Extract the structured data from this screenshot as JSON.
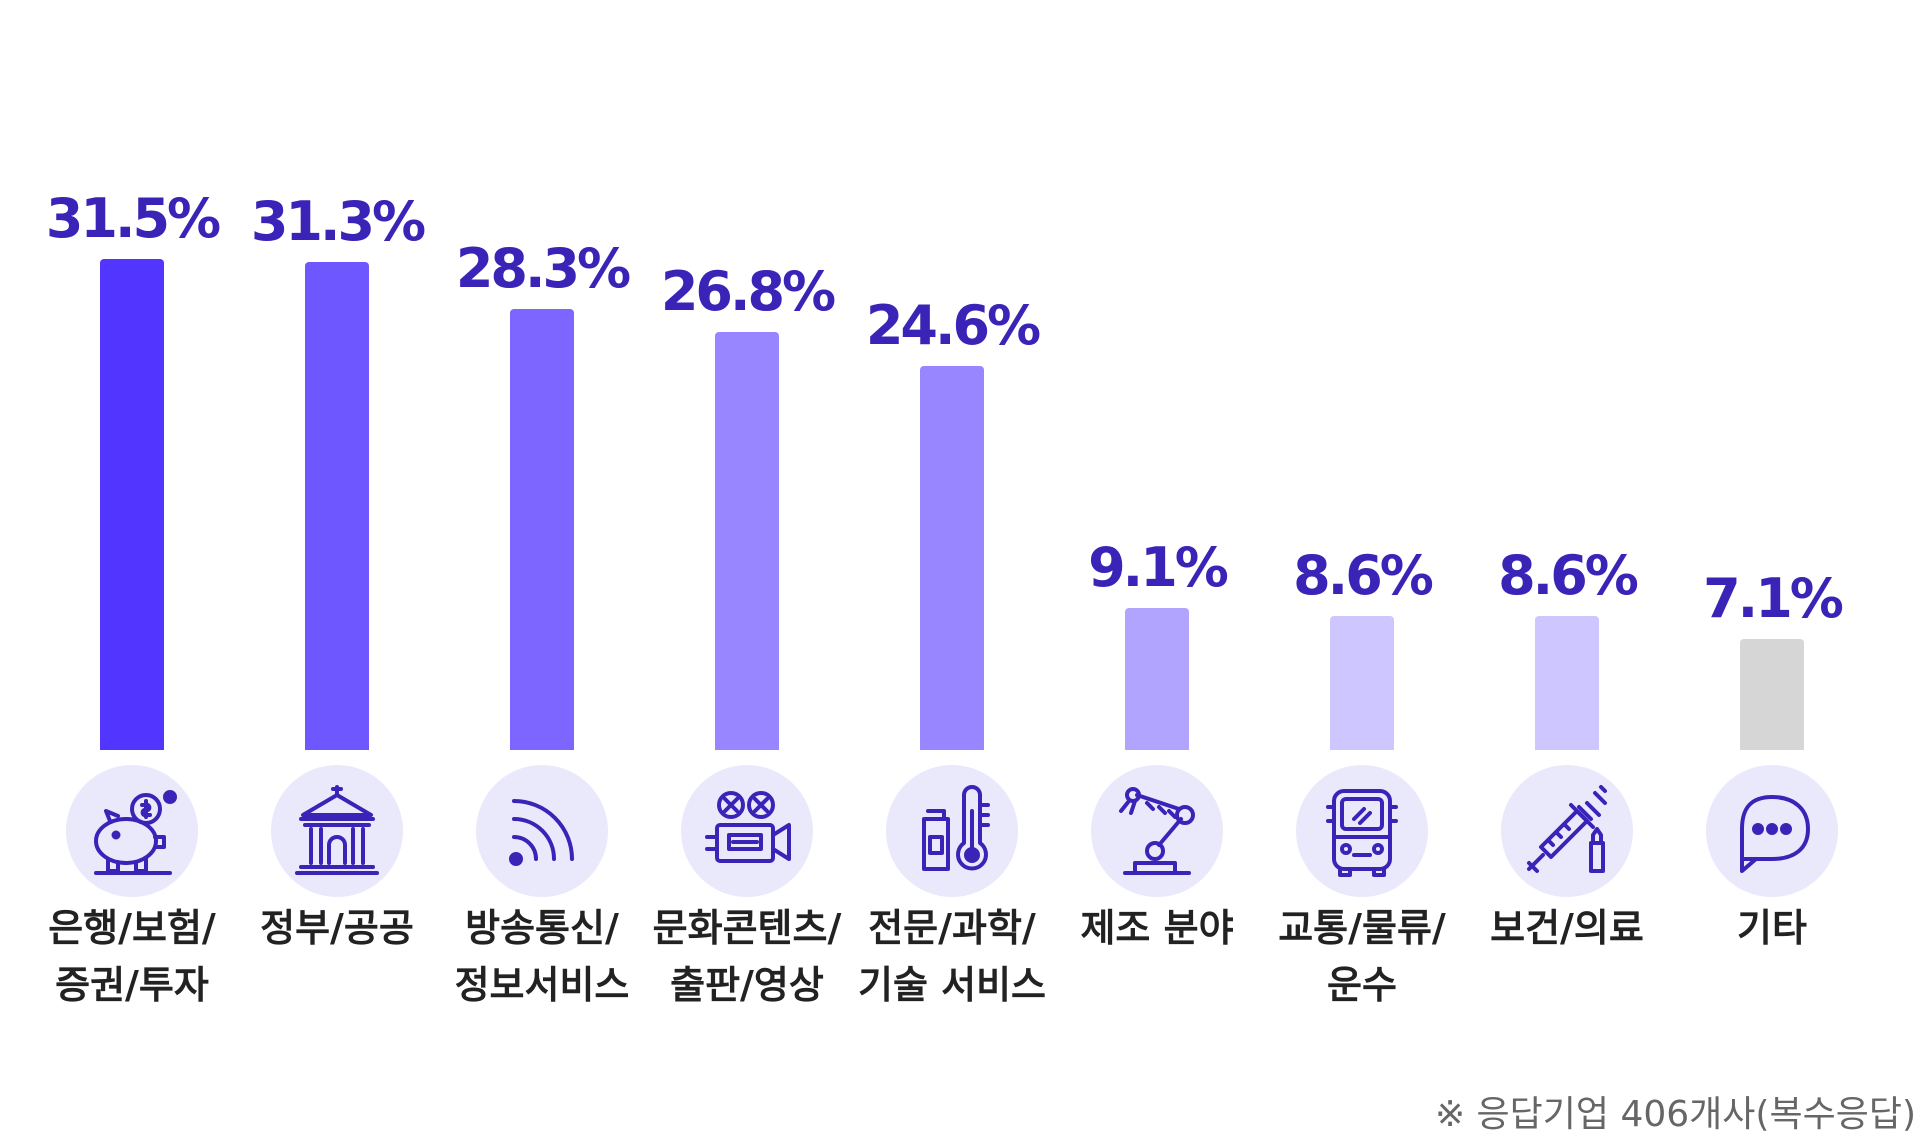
{
  "chart_data": {
    "type": "bar",
    "unit": "%",
    "categories": [
      [
        "은행/보험/",
        "증권/투자"
      ],
      [
        "정부/공공"
      ],
      [
        "방송통신/",
        "정보서비스"
      ],
      [
        "문화콘텐츠/",
        "출판/영상"
      ],
      [
        "전문/과학/",
        "기술 서비스"
      ],
      [
        "제조 분야"
      ],
      [
        "교통/물류/",
        "운수"
      ],
      [
        "보건/의료"
      ],
      [
        "기타"
      ]
    ],
    "values": [
      31.5,
      31.3,
      28.3,
      26.8,
      24.6,
      9.1,
      8.6,
      8.6,
      7.1
    ],
    "value_labels": [
      "31.5%",
      "31.3%",
      "28.3%",
      "26.8%",
      "24.6%",
      "9.1%",
      "8.6%",
      "8.6%",
      "7.1%"
    ],
    "bar_colors": [
      "#5236ff",
      "#6e57ff",
      "#7c66ff",
      "#9786ff",
      "#9786ff",
      "#b0a4ff",
      "#cdc6ff",
      "#cdc6ff",
      "#d6d6d6"
    ],
    "icons": [
      "piggy-bank-icon",
      "government-building-icon",
      "broadcast-signal-icon",
      "film-camera-icon",
      "thermometer-bottle-icon",
      "robot-arm-icon",
      "bus-icon",
      "syringe-icon",
      "chat-bubble-icon"
    ],
    "ylim": [
      0,
      35
    ],
    "grid": false,
    "legend": "none",
    "title": "",
    "xlabel": "",
    "ylabel": ""
  },
  "colors": {
    "label_text": "#3a24b8",
    "icon_stroke": "#3a24b8",
    "icon_circle": "#eae8fb"
  },
  "footnote": "※ 응답기업 406개사(복수응답)"
}
